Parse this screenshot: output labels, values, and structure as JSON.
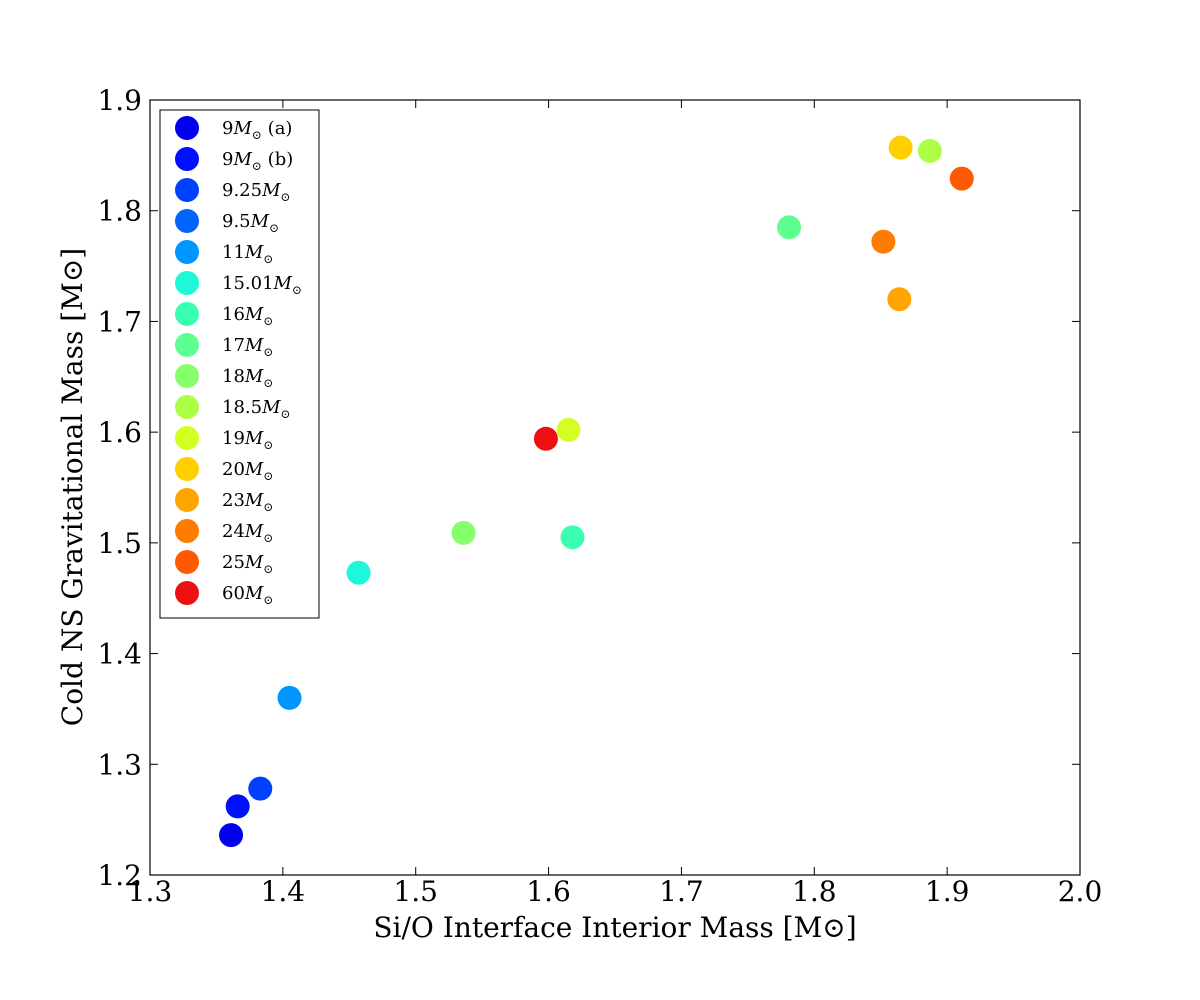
{
  "chart_data": {
    "type": "scatter",
    "title": "",
    "xlabel": "Si/O Interface Interior Mass [M⊙]",
    "ylabel": "Cold NS Gravitational Mass [M⊙]",
    "xlim": [
      1.3,
      2.0
    ],
    "ylim": [
      1.2,
      1.9
    ],
    "xticks": [
      1.3,
      1.4,
      1.5,
      1.6,
      1.7,
      1.8,
      1.9,
      2.0
    ],
    "yticks": [
      1.2,
      1.3,
      1.4,
      1.5,
      1.6,
      1.7,
      1.8,
      1.9
    ],
    "xtick_labels": [
      "1.3",
      "1.4",
      "1.5",
      "1.6",
      "1.7",
      "1.8",
      "1.9",
      "2.0"
    ],
    "ytick_labels": [
      "1.2",
      "1.3",
      "1.4",
      "1.5",
      "1.6",
      "1.7",
      "1.8",
      "1.9"
    ],
    "legend_position": "top-left",
    "series": [
      {
        "name": "9M⊙ (a)",
        "mass": "9",
        "suffix": " (a)",
        "color": "#0000ee",
        "points": [
          [
            1.361,
            1.236
          ]
        ]
      },
      {
        "name": "9M⊙ (b)",
        "mass": "9",
        "suffix": " (b)",
        "color": "#0010ff",
        "points": [
          [
            1.366,
            1.262
          ]
        ]
      },
      {
        "name": "9.25M⊙",
        "mass": "9.25",
        "suffix": "",
        "color": "#0040ff",
        "points": [
          [
            1.383,
            1.278
          ]
        ]
      },
      {
        "name": "9.5M⊙",
        "mass": "9.5",
        "suffix": "",
        "color": "#0064ff",
        "points": []
      },
      {
        "name": "11M⊙",
        "mass": "11",
        "suffix": "",
        "color": "#0096ff",
        "points": [
          [
            1.405,
            1.36
          ]
        ]
      },
      {
        "name": "15.01M⊙",
        "mass": "15.01",
        "suffix": "",
        "color": "#1df8d8",
        "points": [
          [
            1.457,
            1.473
          ]
        ]
      },
      {
        "name": "16M⊙",
        "mass": "16",
        "suffix": "",
        "color": "#3affb0",
        "points": [
          [
            1.618,
            1.505
          ]
        ]
      },
      {
        "name": "17M⊙",
        "mass": "17",
        "suffix": "",
        "color": "#5cff90",
        "points": [
          [
            1.781,
            1.785
          ]
        ]
      },
      {
        "name": "18M⊙",
        "mass": "18",
        "suffix": "",
        "color": "#86ff6a",
        "points": [
          [
            1.536,
            1.509
          ]
        ]
      },
      {
        "name": "18.5M⊙",
        "mass": "18.5",
        "suffix": "",
        "color": "#adff46",
        "points": [
          [
            1.887,
            1.854
          ]
        ]
      },
      {
        "name": "19M⊙",
        "mass": "19",
        "suffix": "",
        "color": "#d4ff22",
        "points": [
          [
            1.615,
            1.602
          ]
        ]
      },
      {
        "name": "20M⊙",
        "mass": "20",
        "suffix": "",
        "color": "#ffd000",
        "points": [
          [
            1.865,
            1.857
          ]
        ]
      },
      {
        "name": "23M⊙",
        "mass": "23",
        "suffix": "",
        "color": "#ffa500",
        "points": [
          [
            1.864,
            1.72
          ]
        ]
      },
      {
        "name": "24M⊙",
        "mass": "24",
        "suffix": "",
        "color": "#ff7c00",
        "points": [
          [
            1.852,
            1.772
          ]
        ]
      },
      {
        "name": "25M⊙",
        "mass": "25",
        "suffix": "",
        "color": "#ff5a00",
        "points": [
          [
            1.911,
            1.829
          ]
        ]
      },
      {
        "name": "60M⊙",
        "mass": "60",
        "suffix": "",
        "color": "#ee1010",
        "points": [
          [
            1.598,
            1.594
          ]
        ]
      }
    ]
  }
}
